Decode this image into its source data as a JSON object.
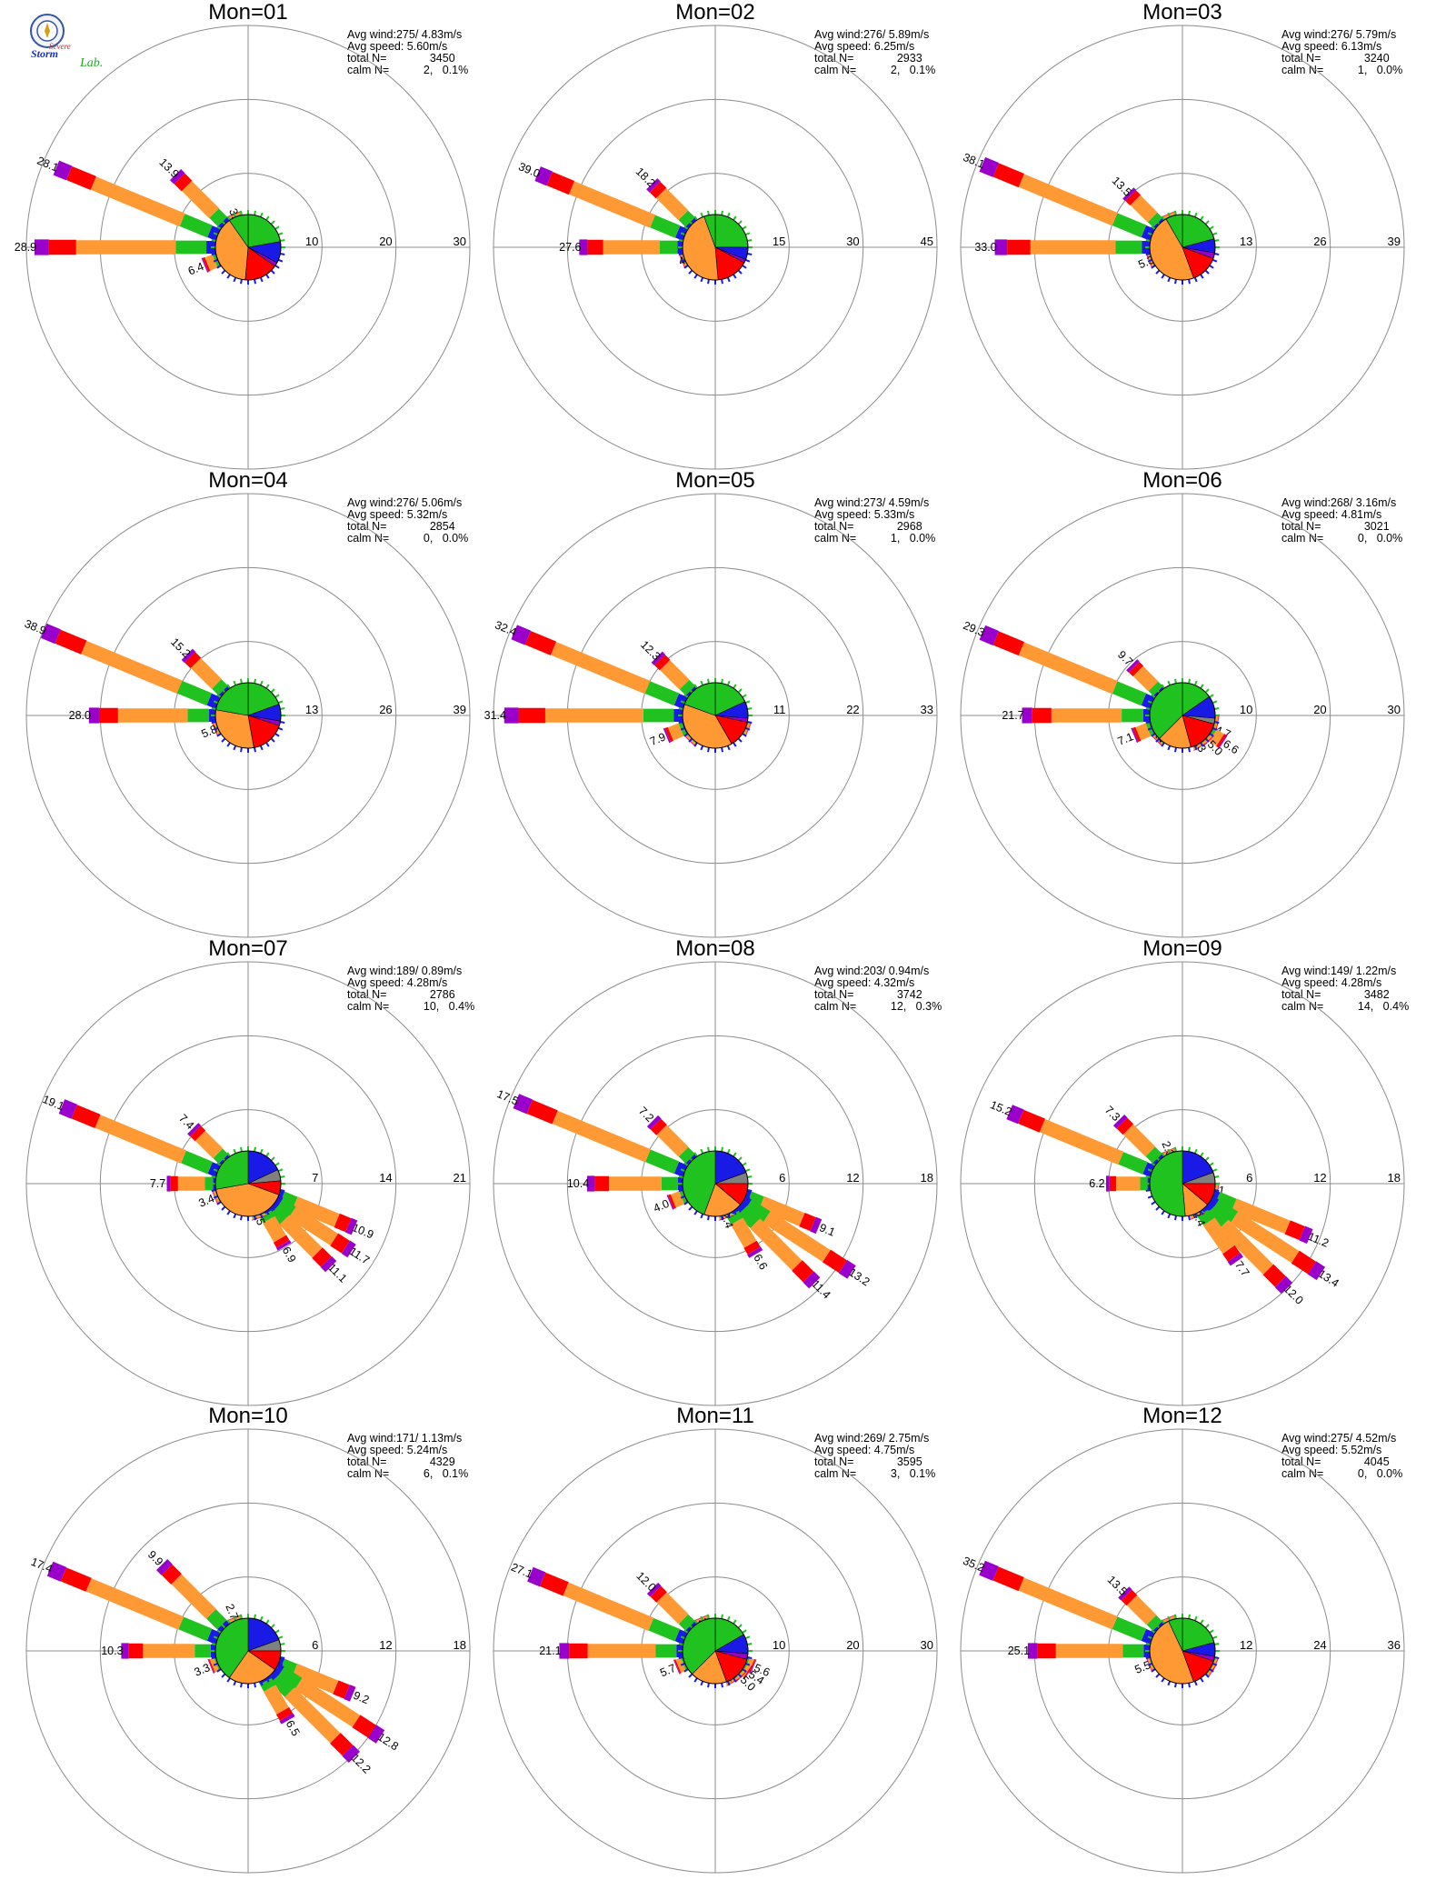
{
  "logo": {
    "text_top": "Severe",
    "text_mid": "Storm",
    "text_lab": "Lab."
  },
  "colors": {
    "ring": "#8c8c8c",
    "axis": "#8c8c8c",
    "speed_bins": [
      "#1a1ae6",
      "#1fc21f",
      "#ff9933",
      "#ff0000",
      "#9900cc"
    ],
    "calm_gray": "#808080"
  },
  "stat_labels": {
    "avg_wind": "Avg wind:",
    "avg_speed": "Avg speed:",
    "total": "total N=",
    "calm": "calm N="
  },
  "chart_data": [
    {
      "type": "windrose",
      "title": "Mon=01",
      "avg_wind": "275/ 4.83m/s",
      "avg_speed": "5.60m/s",
      "total_n": "3450",
      "calm_n": "2,   0.1%",
      "ring_labels": [
        "10",
        "20",
        "30"
      ],
      "rmax": 30,
      "petals": [
        {
          "dir": 270,
          "value": 28.9,
          "label": "28.9"
        },
        {
          "dir": 292.5,
          "value": 28.1,
          "label": "28.1"
        },
        {
          "dir": 315,
          "value": 13.9,
          "label": "13.9"
        },
        {
          "dir": 337.5,
          "value": 3.3,
          "label": "3.3"
        },
        {
          "dir": 247.5,
          "value": 6.4,
          "label": "6.4"
        }
      ],
      "pie": [
        {
          "from": 0,
          "to": 80,
          "color": "#1fc21f"
        },
        {
          "from": 80,
          "to": 118,
          "color": "#1a1ae6"
        },
        {
          "from": 118,
          "to": 125,
          "color": "#9900cc"
        },
        {
          "from": 125,
          "to": 185,
          "color": "#ff0000"
        },
        {
          "from": 185,
          "to": 325,
          "color": "#ff9933"
        },
        {
          "from": 325,
          "to": 360,
          "color": "#1fc21f"
        }
      ]
    },
    {
      "type": "windrose",
      "title": "Mon=02",
      "avg_wind": "276/ 5.89m/s",
      "avg_speed": "6.25m/s",
      "total_n": "2933",
      "calm_n": "2,   0.1%",
      "ring_labels": [
        "15",
        "30",
        "45"
      ],
      "rmax": 45,
      "petals": [
        {
          "dir": 270,
          "value": 27.6,
          "label": "27.6"
        },
        {
          "dir": 292.5,
          "value": 39.0,
          "label": "39.0"
        },
        {
          "dir": 315,
          "value": 18.2,
          "label": "18.2"
        },
        {
          "dir": 247.5,
          "value": 4.5,
          "label": "4.5"
        }
      ],
      "pie": [
        {
          "from": 0,
          "to": 90,
          "color": "#1fc21f"
        },
        {
          "from": 90,
          "to": 112,
          "color": "#1a1ae6"
        },
        {
          "from": 112,
          "to": 118,
          "color": "#9900cc"
        },
        {
          "from": 118,
          "to": 175,
          "color": "#ff0000"
        },
        {
          "from": 175,
          "to": 340,
          "color": "#ff9933"
        },
        {
          "from": 340,
          "to": 360,
          "color": "#1fc21f"
        }
      ]
    },
    {
      "type": "windrose",
      "title": "Mon=03",
      "avg_wind": "276/ 5.79m/s",
      "avg_speed": "6.13m/s",
      "total_n": "3240",
      "calm_n": "1,   0.0%",
      "ring_labels": [
        "13",
        "26",
        "39"
      ],
      "rmax": 39,
      "petals": [
        {
          "dir": 270,
          "value": 33.0,
          "label": "33.0"
        },
        {
          "dir": 292.5,
          "value": 38.1,
          "label": "38.1"
        },
        {
          "dir": 315,
          "value": 13.5,
          "label": "13.5"
        },
        {
          "dir": 337.5,
          "value": 2.3,
          "label": "2.3"
        },
        {
          "dir": 247.5,
          "value": 5.3,
          "label": "5.3"
        }
      ],
      "pie": [
        {
          "from": 0,
          "to": 75,
          "color": "#1fc21f"
        },
        {
          "from": 75,
          "to": 100,
          "color": "#1a1ae6"
        },
        {
          "from": 100,
          "to": 110,
          "color": "#9900cc"
        },
        {
          "from": 110,
          "to": 160,
          "color": "#ff0000"
        },
        {
          "from": 160,
          "to": 330,
          "color": "#ff9933"
        },
        {
          "from": 330,
          "to": 360,
          "color": "#1fc21f"
        }
      ]
    },
    {
      "type": "windrose",
      "title": "Mon=04",
      "avg_wind": "276/ 5.06m/s",
      "avg_speed": "5.32m/s",
      "total_n": "2854",
      "calm_n": "0,   0.0%",
      "ring_labels": [
        "13",
        "26",
        "39"
      ],
      "rmax": 39,
      "petals": [
        {
          "dir": 270,
          "value": 28.0,
          "label": "28.0"
        },
        {
          "dir": 292.5,
          "value": 38.9,
          "label": "38.9"
        },
        {
          "dir": 315,
          "value": 15.2,
          "label": "15.2"
        },
        {
          "dir": 247.5,
          "value": 5.8,
          "label": "5.8"
        }
      ],
      "pie": [
        {
          "from": 0,
          "to": 70,
          "color": "#1fc21f"
        },
        {
          "from": 70,
          "to": 100,
          "color": "#1a1ae6"
        },
        {
          "from": 100,
          "to": 108,
          "color": "#9900cc"
        },
        {
          "from": 108,
          "to": 170,
          "color": "#ff0000"
        },
        {
          "from": 170,
          "to": 280,
          "color": "#ff9933"
        },
        {
          "from": 280,
          "to": 360,
          "color": "#1fc21f"
        }
      ]
    },
    {
      "type": "windrose",
      "title": "Mon=05",
      "avg_wind": "273/ 4.59m/s",
      "avg_speed": "5.33m/s",
      "total_n": "2968",
      "calm_n": "1,   0.0%",
      "ring_labels": [
        "11",
        "22",
        "33"
      ],
      "rmax": 33,
      "petals": [
        {
          "dir": 270,
          "value": 31.4,
          "label": "31.4"
        },
        {
          "dir": 292.5,
          "value": 32.4,
          "label": "32.4"
        },
        {
          "dir": 315,
          "value": 12.3,
          "label": "12.3"
        },
        {
          "dir": 247.5,
          "value": 7.9,
          "label": "7.9"
        },
        {
          "dir": 225,
          "value": 2.4,
          "label": "2.4"
        },
        {
          "dir": 112.5,
          "value": 2.3,
          "label": "2.3"
        }
      ],
      "pie": [
        {
          "from": 0,
          "to": 65,
          "color": "#1fc21f"
        },
        {
          "from": 65,
          "to": 95,
          "color": "#1a1ae6"
        },
        {
          "from": 95,
          "to": 102,
          "color": "#9900cc"
        },
        {
          "from": 102,
          "to": 150,
          "color": "#ff0000"
        },
        {
          "from": 150,
          "to": 290,
          "color": "#ff9933"
        },
        {
          "from": 290,
          "to": 360,
          "color": "#1fc21f"
        }
      ]
    },
    {
      "type": "windrose",
      "title": "Mon=06",
      "avg_wind": "268/ 3.16m/s",
      "avg_speed": "4.81m/s",
      "total_n": "3021",
      "calm_n": "0,   0.0%",
      "ring_labels": [
        "10",
        "20",
        "30"
      ],
      "rmax": 30,
      "petals": [
        {
          "dir": 270,
          "value": 21.7,
          "label": "21.7"
        },
        {
          "dir": 292.5,
          "value": 29.3,
          "label": "29.3"
        },
        {
          "dir": 315,
          "value": 9.7,
          "label": "9.7"
        },
        {
          "dir": 247.5,
          "value": 7.1,
          "label": "7.1"
        },
        {
          "dir": 225,
          "value": 2.5,
          "label": "2.5"
        },
        {
          "dir": 112.5,
          "value": 4.7,
          "label": "4.7"
        },
        {
          "dir": 123,
          "value": 6.6,
          "label": "6.6"
        },
        {
          "dir": 135,
          "value": 5.0,
          "label": "5.0"
        },
        {
          "dir": 150,
          "value": 3.3,
          "label": "3.3"
        },
        {
          "dir": 100,
          "value": 2.1,
          "label": "2.1"
        }
      ],
      "pie": [
        {
          "from": 0,
          "to": 55,
          "color": "#1fc21f"
        },
        {
          "from": 55,
          "to": 95,
          "color": "#1a1ae6"
        },
        {
          "from": 95,
          "to": 105,
          "color": "#808080"
        },
        {
          "from": 105,
          "to": 165,
          "color": "#ff0000"
        },
        {
          "from": 165,
          "to": 225,
          "color": "#ff9933"
        },
        {
          "from": 225,
          "to": 360,
          "color": "#1fc21f"
        }
      ]
    },
    {
      "type": "windrose",
      "title": "Mon=07",
      "avg_wind": "189/ 0.89m/s",
      "avg_speed": "4.28m/s",
      "total_n": "2786",
      "calm_n": "10,   0.4%",
      "ring_labels": [
        "7",
        "14",
        "21"
      ],
      "rmax": 21,
      "petals": [
        {
          "dir": 292.5,
          "value": 19.1,
          "label": "19.1"
        },
        {
          "dir": 315,
          "value": 7.4,
          "label": "7.4"
        },
        {
          "dir": 270,
          "value": 7.7,
          "label": "7.7"
        },
        {
          "dir": 247.5,
          "value": 3.4,
          "label": "3.4"
        },
        {
          "dir": 112.5,
          "value": 10.9,
          "label": "10.9"
        },
        {
          "dir": 123,
          "value": 11.7,
          "label": "11.7"
        },
        {
          "dir": 135,
          "value": 11.1,
          "label": "11.1"
        },
        {
          "dir": 150,
          "value": 6.9,
          "label": "6.9"
        },
        {
          "dir": 162,
          "value": 2.5,
          "label": "2.5"
        }
      ],
      "pie": [
        {
          "from": 0,
          "to": 65,
          "color": "#1a1ae6"
        },
        {
          "from": 65,
          "to": 85,
          "color": "#808080"
        },
        {
          "from": 85,
          "to": 110,
          "color": "#ff0000"
        },
        {
          "from": 110,
          "to": 260,
          "color": "#ff9933"
        },
        {
          "from": 260,
          "to": 360,
          "color": "#1fc21f"
        }
      ]
    },
    {
      "type": "windrose",
      "title": "Mon=08",
      "avg_wind": "203/ 0.94m/s",
      "avg_speed": "4.32m/s",
      "total_n": "3742",
      "calm_n": "12,   0.3%",
      "ring_labels": [
        "6",
        "12",
        "18"
      ],
      "rmax": 18,
      "petals": [
        {
          "dir": 292.5,
          "value": 17.5,
          "label": "17.5"
        },
        {
          "dir": 315,
          "value": 7.2,
          "label": "7.2"
        },
        {
          "dir": 270,
          "value": 10.4,
          "label": "10.4"
        },
        {
          "dir": 247.5,
          "value": 4.0,
          "label": "4.0"
        },
        {
          "dir": 112.5,
          "value": 9.1,
          "label": "9.1"
        },
        {
          "dir": 123,
          "value": 13.2,
          "label": "13.2"
        },
        {
          "dir": 135,
          "value": 11.4,
          "label": "11.4"
        },
        {
          "dir": 150,
          "value": 6.6,
          "label": "6.6"
        },
        {
          "dir": 162,
          "value": 2.4,
          "label": "2.4"
        }
      ],
      "pie": [
        {
          "from": 0,
          "to": 70,
          "color": "#1a1ae6"
        },
        {
          "from": 70,
          "to": 90,
          "color": "#808080"
        },
        {
          "from": 90,
          "to": 130,
          "color": "#ff0000"
        },
        {
          "from": 130,
          "to": 200,
          "color": "#ff9933"
        },
        {
          "from": 200,
          "to": 360,
          "color": "#1fc21f"
        }
      ]
    },
    {
      "type": "windrose",
      "title": "Mon=09",
      "avg_wind": "149/ 1.22m/s",
      "avg_speed": "4.28m/s",
      "total_n": "3482",
      "calm_n": "14,   0.4%",
      "ring_labels": [
        "6",
        "12",
        "18"
      ],
      "rmax": 18,
      "petals": [
        {
          "dir": 292.5,
          "value": 15.2,
          "label": "15.2"
        },
        {
          "dir": 315,
          "value": 7.3,
          "label": "7.3"
        },
        {
          "dir": 337.5,
          "value": 2.3,
          "label": "2.3"
        },
        {
          "dir": 270,
          "value": 6.2,
          "label": "6.2"
        },
        {
          "dir": 100,
          "value": 2.1,
          "label": "2.1"
        },
        {
          "dir": 112.5,
          "value": 11.2,
          "label": "11.2"
        },
        {
          "dir": 123,
          "value": 13.4,
          "label": "13.4"
        },
        {
          "dir": 135,
          "value": 12.0,
          "label": "12.0"
        },
        {
          "dir": 145,
          "value": 7.7,
          "label": "7.7"
        },
        {
          "dir": 155,
          "value": 2.4,
          "label": "2.4"
        }
      ],
      "pie": [
        {
          "from": 0,
          "to": 70,
          "color": "#1a1ae6"
        },
        {
          "from": 70,
          "to": 90,
          "color": "#808080"
        },
        {
          "from": 90,
          "to": 130,
          "color": "#ff0000"
        },
        {
          "from": 130,
          "to": 175,
          "color": "#ff9933"
        },
        {
          "from": 175,
          "to": 360,
          "color": "#1fc21f"
        }
      ]
    },
    {
      "type": "windrose",
      "title": "Mon=10",
      "avg_wind": "171/ 1.13m/s",
      "avg_speed": "5.24m/s",
      "total_n": "4329",
      "calm_n": "6,   0.1%",
      "ring_labels": [
        "6",
        "12",
        "18"
      ],
      "rmax": 18,
      "petals": [
        {
          "dir": 292.5,
          "value": 17.4,
          "label": "17.4"
        },
        {
          "dir": 315,
          "value": 9.9,
          "label": "9.9"
        },
        {
          "dir": 337.5,
          "value": 2.7,
          "label": "2.7"
        },
        {
          "dir": 270,
          "value": 10.3,
          "label": "10.3"
        },
        {
          "dir": 247.5,
          "value": 3.3,
          "label": "3.3"
        },
        {
          "dir": 112.5,
          "value": 9.2,
          "label": "9.2"
        },
        {
          "dir": 123,
          "value": 12.8,
          "label": "12.8"
        },
        {
          "dir": 135,
          "value": 12.2,
          "label": "12.2"
        },
        {
          "dir": 150,
          "value": 6.5,
          "label": "6.5"
        }
      ],
      "pie": [
        {
          "from": 0,
          "to": 70,
          "color": "#1a1ae6"
        },
        {
          "from": 70,
          "to": 90,
          "color": "#808080"
        },
        {
          "from": 90,
          "to": 125,
          "color": "#ff0000"
        },
        {
          "from": 125,
          "to": 215,
          "color": "#ff9933"
        },
        {
          "from": 215,
          "to": 360,
          "color": "#1fc21f"
        }
      ]
    },
    {
      "type": "windrose",
      "title": "Mon=11",
      "avg_wind": "269/ 2.75m/s",
      "avg_speed": "4.75m/s",
      "total_n": "3595",
      "calm_n": "3,   0.1%",
      "ring_labels": [
        "10",
        "20",
        "30"
      ],
      "rmax": 30,
      "petals": [
        {
          "dir": 270,
          "value": 21.1,
          "label": "21.1"
        },
        {
          "dir": 292.5,
          "value": 27.1,
          "label": "27.1"
        },
        {
          "dir": 315,
          "value": 12.0,
          "label": "12.0"
        },
        {
          "dir": 337.5,
          "value": 2.4,
          "label": "2.4"
        },
        {
          "dir": 247.5,
          "value": 5.7,
          "label": "5.7"
        },
        {
          "dir": 112.5,
          "value": 5.6,
          "label": "5.6"
        },
        {
          "dir": 123,
          "value": 5.4,
          "label": "5.4"
        },
        {
          "dir": 135,
          "value": 5.0,
          "label": "5.0"
        },
        {
          "dir": 150,
          "value": 2.4,
          "label": "2.4"
        }
      ],
      "pie": [
        {
          "from": 0,
          "to": 60,
          "color": "#1fc21f"
        },
        {
          "from": 60,
          "to": 95,
          "color": "#1a1ae6"
        },
        {
          "from": 95,
          "to": 105,
          "color": "#9900cc"
        },
        {
          "from": 105,
          "to": 160,
          "color": "#ff0000"
        },
        {
          "from": 160,
          "to": 225,
          "color": "#ff9933"
        },
        {
          "from": 225,
          "to": 360,
          "color": "#1fc21f"
        }
      ]
    },
    {
      "type": "windrose",
      "title": "Mon=12",
      "avg_wind": "275/ 4.52m/s",
      "avg_speed": "5.52m/s",
      "total_n": "4045",
      "calm_n": "0,   0.0%",
      "ring_labels": [
        "12",
        "24",
        "36"
      ],
      "rmax": 36,
      "petals": [
        {
          "dir": 270,
          "value": 25.1,
          "label": "25.1"
        },
        {
          "dir": 292.5,
          "value": 35.2,
          "label": "35.2"
        },
        {
          "dir": 315,
          "value": 13.5,
          "label": "13.5"
        },
        {
          "dir": 337.5,
          "value": 2.5,
          "label": "2.5"
        },
        {
          "dir": 247.5,
          "value": 5.5,
          "label": "5.5"
        },
        {
          "dir": 112.5,
          "value": 2.7,
          "label": "2.7"
        },
        {
          "dir": 123,
          "value": 2.2,
          "label": "2.2"
        }
      ],
      "pie": [
        {
          "from": 0,
          "to": 75,
          "color": "#1fc21f"
        },
        {
          "from": 75,
          "to": 100,
          "color": "#1a1ae6"
        },
        {
          "from": 100,
          "to": 108,
          "color": "#9900cc"
        },
        {
          "from": 108,
          "to": 160,
          "color": "#ff0000"
        },
        {
          "from": 160,
          "to": 335,
          "color": "#ff9933"
        },
        {
          "from": 335,
          "to": 360,
          "color": "#1fc21f"
        }
      ]
    }
  ]
}
